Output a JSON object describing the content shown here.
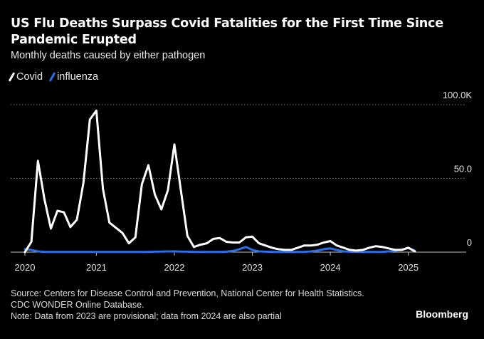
{
  "title": "US Flu Deaths Surpass Covid Fatalities for the First Time Since Pandemic Erupted",
  "subtitle": "Monthly deaths caused by either pathogen",
  "footer": {
    "source": "Source: Centers for Disease Control and Prevention, National Center for Health Statistics. CDC WONDER Online Database.",
    "note": "Note: Data from 2023 are provisional; data from 2024 are also partial",
    "logo": "Bloomberg"
  },
  "colors": {
    "covid": "#ffffff",
    "influenza": "#2a6fe8",
    "grid": "#777777",
    "background": "#000000"
  },
  "chart_data": {
    "type": "line",
    "title": "US Flu Deaths Surpass Covid Fatalities for the First Time Since Pandemic Erupted",
    "subtitle": "Monthly deaths caused by either pathogen",
    "ylabel": "",
    "xlabel": "",
    "ylim": [
      0,
      100
    ],
    "yticks": [
      {
        "value": 0,
        "label": "0"
      },
      {
        "value": 50,
        "label": "50.0"
      },
      {
        "value": 100,
        "label": "100.0K"
      }
    ],
    "xticks": [
      {
        "value": "2020-01",
        "label": "2020"
      },
      {
        "value": "2021-01",
        "label": "2021"
      },
      {
        "value": "2022-01",
        "label": "2022"
      },
      {
        "value": "2023-01",
        "label": "2023"
      },
      {
        "value": "2024-01",
        "label": "2024"
      },
      {
        "value": "2025-01",
        "label": "2025"
      }
    ],
    "grid": "horizontal dotted",
    "legend": "top-left",
    "x": [
      "2020-02",
      "2020-03",
      "2020-04",
      "2020-05",
      "2020-06",
      "2020-07",
      "2020-08",
      "2020-09",
      "2020-10",
      "2020-11",
      "2020-12",
      "2021-01",
      "2021-02",
      "2021-03",
      "2021-04",
      "2021-05",
      "2021-06",
      "2021-07",
      "2021-08",
      "2021-09",
      "2021-10",
      "2021-11",
      "2021-12",
      "2022-01",
      "2022-02",
      "2022-03",
      "2022-04",
      "2022-05",
      "2022-06",
      "2022-07",
      "2022-08",
      "2022-09",
      "2022-10",
      "2022-11",
      "2022-12",
      "2023-01",
      "2023-02",
      "2023-03",
      "2023-04",
      "2023-05",
      "2023-06",
      "2023-07",
      "2023-08",
      "2023-09",
      "2023-10",
      "2023-11",
      "2023-12",
      "2024-01",
      "2024-02",
      "2024-03",
      "2024-04",
      "2024-05",
      "2024-06",
      "2024-07",
      "2024-08",
      "2024-09",
      "2024-10",
      "2024-11",
      "2024-12",
      "2025-01",
      "2025-02"
    ],
    "series": [
      {
        "name": "Covid",
        "values": [
          0,
          7,
          62,
          36,
          16,
          28,
          27,
          17,
          22,
          47,
          90,
          96,
          43,
          20,
          16.5,
          13,
          6,
          10,
          46,
          59,
          39,
          29,
          42,
          73,
          42,
          11,
          3.5,
          5,
          6,
          9,
          9.5,
          7,
          6.5,
          6.5,
          10,
          10.5,
          6,
          4.5,
          3,
          2,
          1.5,
          1.5,
          3,
          4.5,
          4.5,
          5,
          6.5,
          7.5,
          4.5,
          3,
          1.5,
          1,
          1.5,
          3,
          4,
          3.5,
          2.5,
          1.5,
          1.5,
          3,
          0.5
        ]
      },
      {
        "name": "influenza",
        "values": [
          2,
          1.5,
          0.5,
          0.2,
          0.1,
          0.1,
          0.1,
          0.1,
          0.1,
          0.1,
          0.1,
          0.1,
          0.1,
          0.1,
          0.1,
          0.1,
          0.1,
          0.1,
          0.1,
          0.2,
          0.3,
          0.4,
          0.5,
          0.5,
          0.4,
          0.3,
          0.2,
          0.2,
          0.1,
          0.1,
          0.1,
          0.3,
          0.8,
          2,
          3.5,
          1.5,
          0.5,
          0.3,
          0.2,
          0.1,
          0.1,
          0.1,
          0.1,
          0.2,
          0.5,
          1,
          2,
          2.5,
          1.5,
          0.5,
          0.3,
          0.2,
          0.1,
          0.1,
          0.1,
          0.2,
          0.5,
          1,
          1.8,
          2.8,
          1
        ]
      }
    ]
  }
}
